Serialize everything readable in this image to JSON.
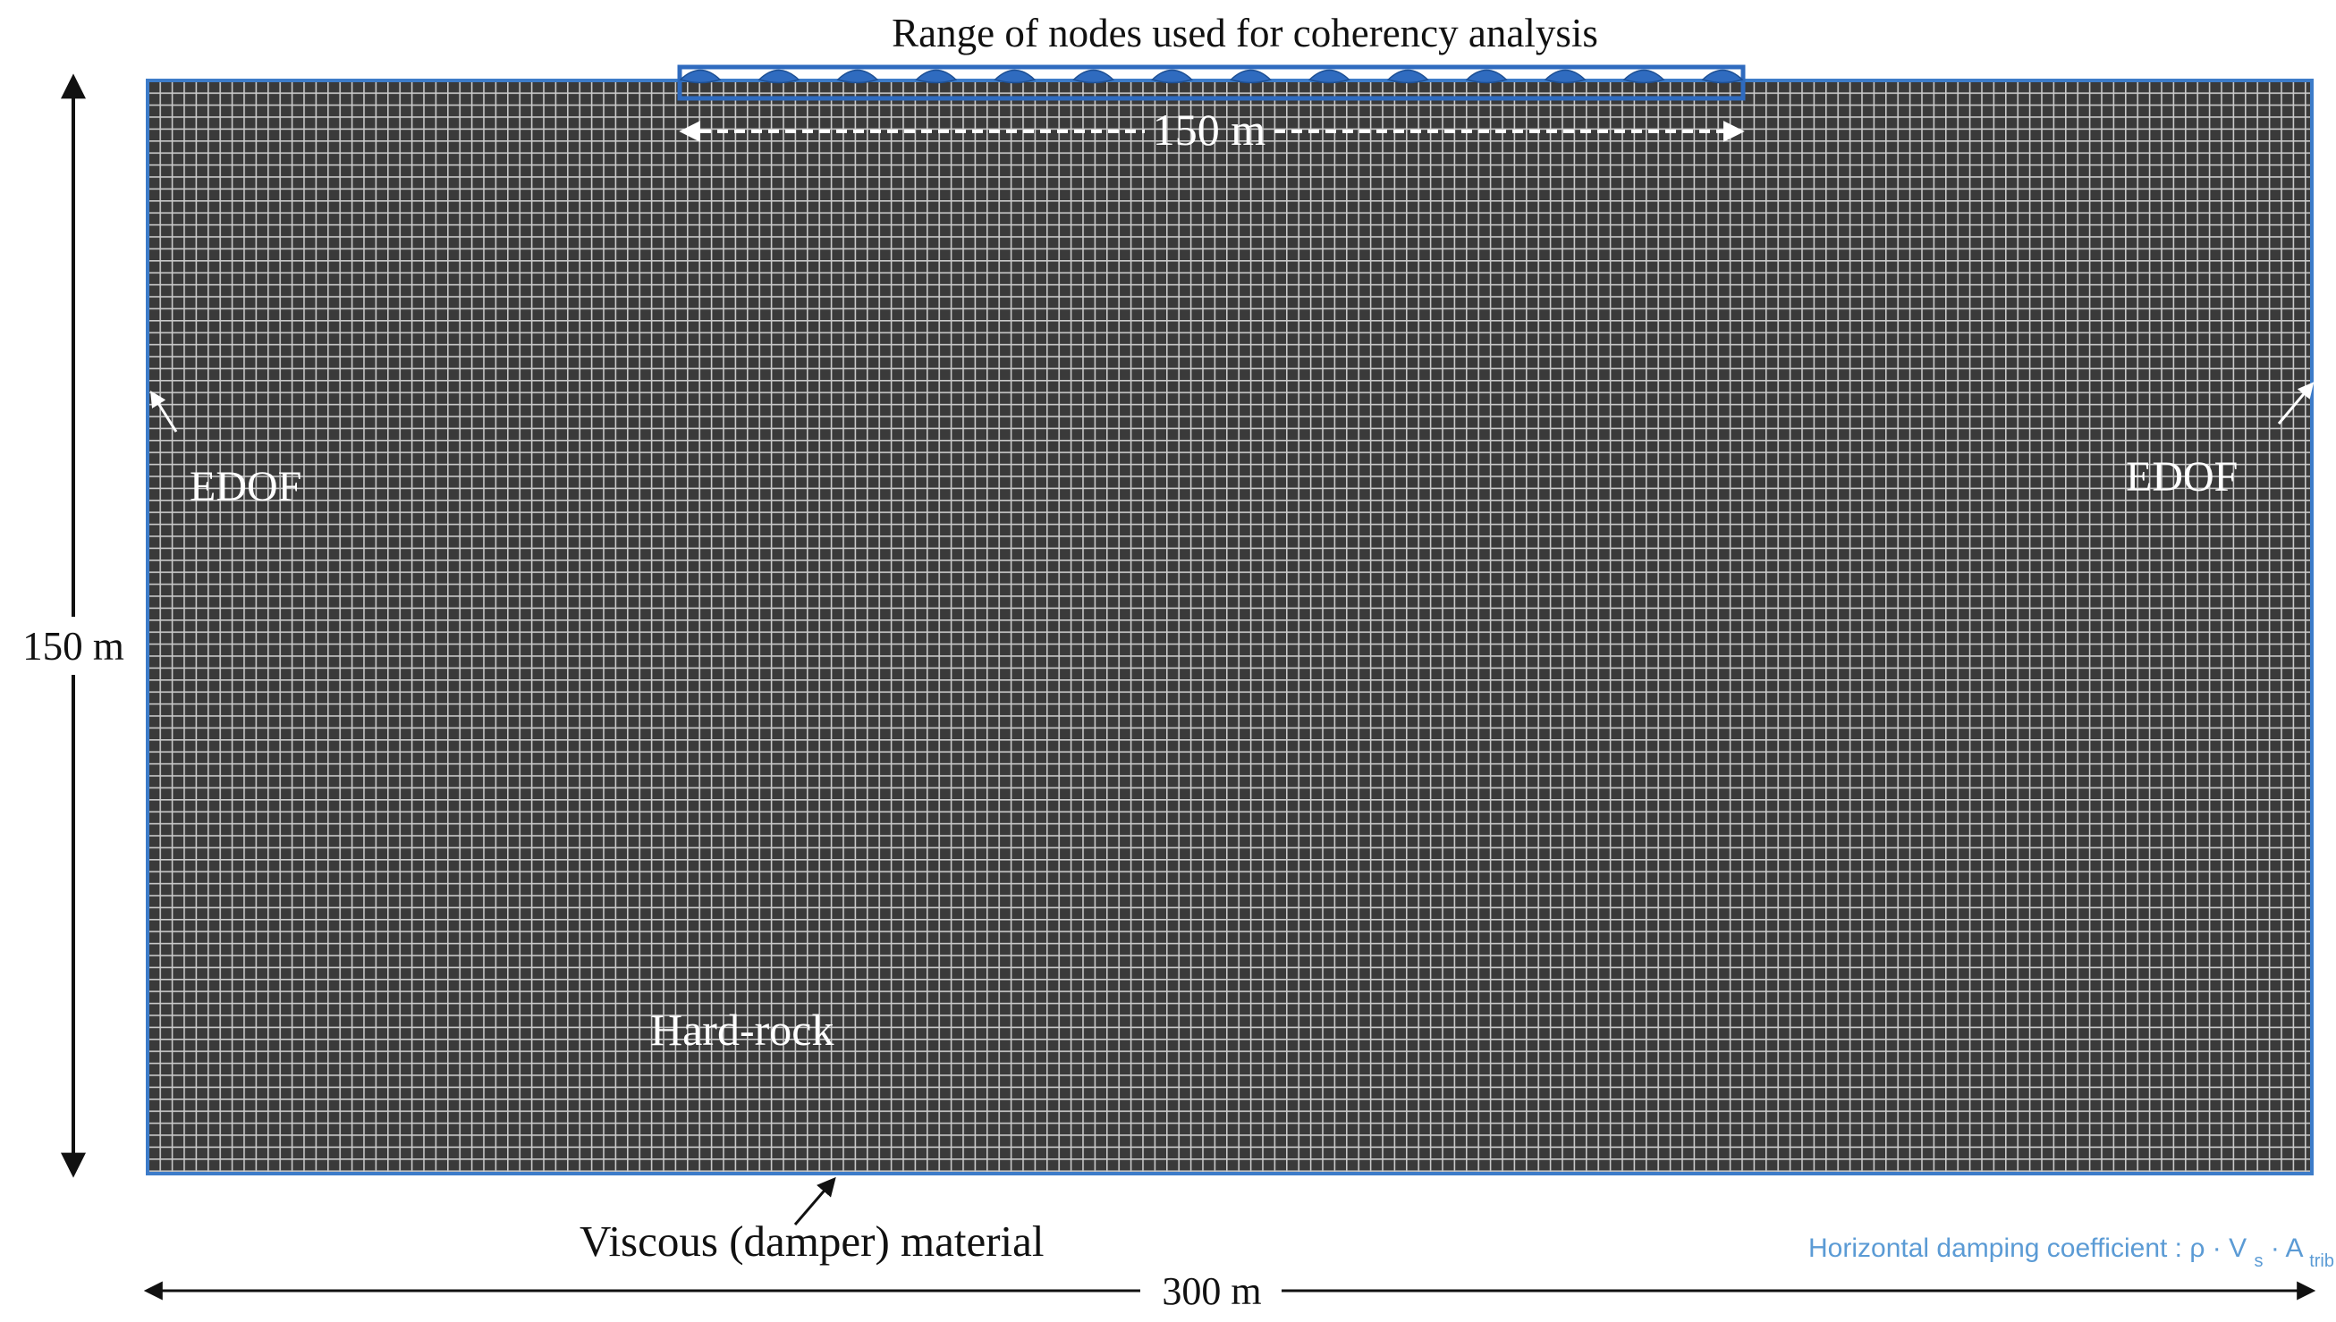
{
  "figure": {
    "top_label": "Range of nodes used for coherency analysis",
    "range_label": "150 m",
    "depth_label": "150 m",
    "width_label": "300 m",
    "left_boundary_label": "EDOF",
    "right_boundary_label": "EDOF",
    "material_label": "Hard-rock",
    "bottom_boundary_label": "Viscous (damper) material",
    "damping_note_prefix": "Horizontal damping coefficient : ",
    "damping_formula": {
      "rho": "ρ",
      "dot": "·",
      "v": "V",
      "v_sub": "s",
      "a": "A",
      "a_sub": "trib"
    },
    "node_count": 14
  },
  "colors": {
    "mesh_background": "#3a3a3a",
    "mesh_lines": "#c9c9c9",
    "boundary_blue": "#3d7cc9",
    "node_fill": "#2f6bbf",
    "note_blue": "#5b9bd5",
    "annotation_white": "#ffffff",
    "annotation_black": "#111111"
  },
  "icons": {
    "node_marker": "half-ellipse-node-icon",
    "arrowheads": "triangle-arrowhead-icon"
  }
}
